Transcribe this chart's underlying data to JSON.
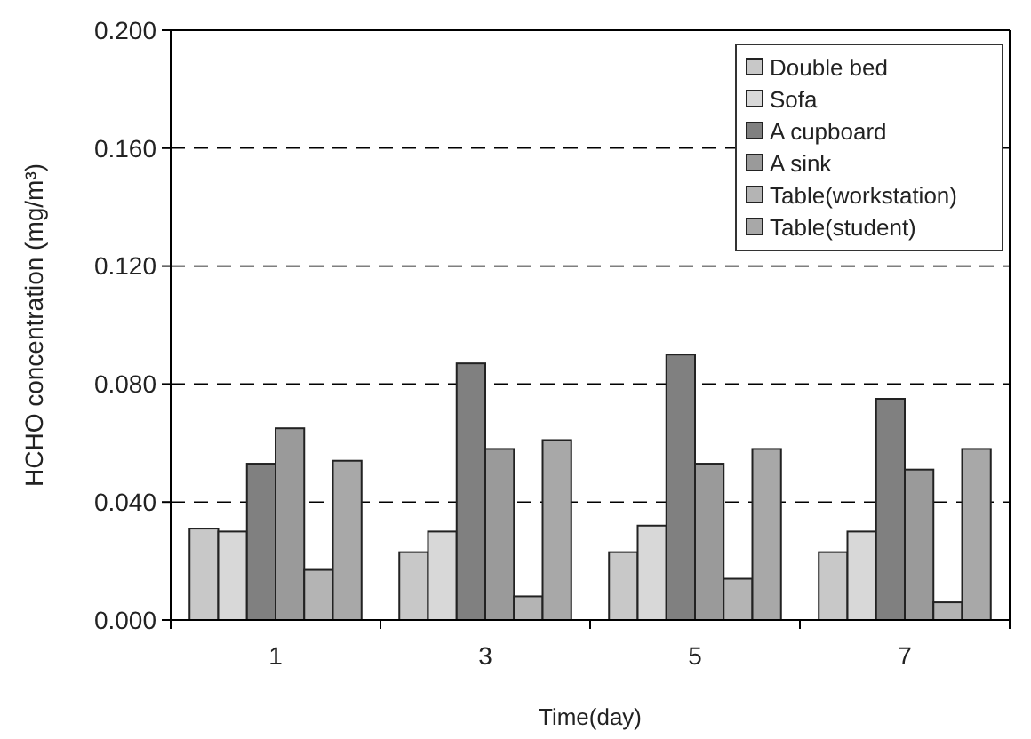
{
  "chart_data": {
    "type": "bar",
    "xlabel": "Time(day)",
    "ylabel": "HCHO concentration (mg/m³)",
    "categories": [
      "1",
      "3",
      "5",
      "7"
    ],
    "series": [
      {
        "name": "Double bed",
        "color": "#c8c8c8",
        "values": [
          0.031,
          0.023,
          0.023,
          0.023
        ]
      },
      {
        "name": "Sofa",
        "color": "#d8d8d8",
        "values": [
          0.03,
          0.03,
          0.032,
          0.03
        ]
      },
      {
        "name": "A cupboard",
        "color": "#808080",
        "values": [
          0.053,
          0.087,
          0.09,
          0.075
        ]
      },
      {
        "name": "A sink",
        "color": "#9a9a9a",
        "values": [
          0.065,
          0.058,
          0.053,
          0.051
        ]
      },
      {
        "name": "Table(workstation)",
        "color": "#b4b4b4",
        "values": [
          0.017,
          0.008,
          0.014,
          0.006
        ]
      },
      {
        "name": "Table(student)",
        "color": "#a8a8a8",
        "values": [
          0.054,
          0.061,
          0.058,
          0.058
        ]
      }
    ],
    "ylim": [
      0,
      0.2
    ],
    "yticks": [
      {
        "value": 0,
        "label": "0.000"
      },
      {
        "value": 0.04,
        "label": "0.040"
      },
      {
        "value": 0.08,
        "label": "0.080"
      },
      {
        "value": 0.12,
        "label": "0.120"
      },
      {
        "value": 0.16,
        "label": "0.160"
      },
      {
        "value": 0.2,
        "label": "0.200"
      }
    ],
    "grid": "y",
    "legend": "top right"
  }
}
